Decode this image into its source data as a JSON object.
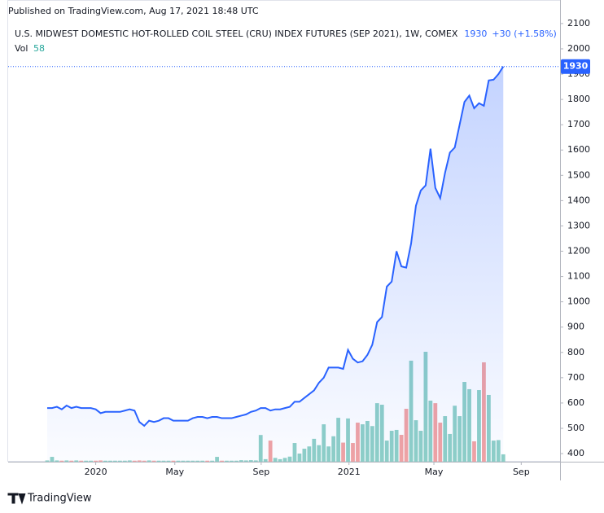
{
  "header": {
    "published": "Published on TradingView.com, Aug 17, 2021 18:48 UTC"
  },
  "footer": {
    "brand": "TradingView"
  },
  "chart_data": {
    "type": "line",
    "title": "U.S. MIDWEST DOMESTIC HOT-ROLLED COIL STEEL (CRU) INDEX FUTURES (SEP 2021), 1W, COMEX",
    "change": "+30 (+1.58%)",
    "x": [
      0,
      1,
      2,
      3,
      4,
      5,
      6,
      7,
      8,
      9,
      10,
      11,
      12,
      13,
      14,
      15,
      16,
      17,
      18,
      19,
      20,
      21,
      22,
      23,
      24,
      25,
      26,
      27,
      28,
      29,
      30,
      31,
      32,
      33,
      34,
      35,
      36,
      37,
      38,
      39,
      40,
      41,
      42,
      43,
      44,
      45,
      46,
      47,
      48,
      49,
      50,
      51,
      52,
      53,
      54,
      55,
      56,
      57,
      58,
      59,
      60,
      61,
      62,
      63,
      64,
      65,
      66,
      67,
      68,
      69,
      70,
      71,
      72,
      73,
      74,
      75,
      76,
      77,
      78,
      79,
      80,
      81,
      82,
      83,
      84,
      85,
      86,
      87,
      88,
      89,
      90,
      91,
      92,
      93,
      94
    ],
    "xlim": [
      -8.05,
      105.7
    ],
    "xticks": [
      {
        "value": 10,
        "label": "2020"
      },
      {
        "value": 26.3,
        "label": "May"
      },
      {
        "value": 44.1,
        "label": "Sep"
      },
      {
        "value": 62.2,
        "label": "2021"
      },
      {
        "value": 79.7,
        "label": "May"
      },
      {
        "value": 97.7,
        "label": "Sep"
      }
    ],
    "ylim": [
      368,
      2193
    ],
    "yticks": [
      400,
      500,
      600,
      700,
      800,
      900,
      1000,
      1100,
      1200,
      1300,
      1400,
      1500,
      1600,
      1700,
      1800,
      1900,
      2000,
      2100
    ],
    "price": {
      "color": "#2962ff",
      "values": [
        580,
        580,
        585,
        575,
        590,
        580,
        585,
        580,
        580,
        580,
        575,
        560,
        565,
        565,
        565,
        565,
        570,
        575,
        570,
        525,
        510,
        530,
        525,
        530,
        540,
        540,
        530,
        530,
        530,
        530,
        540,
        545,
        545,
        540,
        545,
        545,
        540,
        540,
        540,
        545,
        550,
        555,
        565,
        570,
        580,
        580,
        570,
        575,
        575,
        580,
        585,
        605,
        605,
        620,
        635,
        650,
        680,
        700,
        740,
        740,
        740,
        735,
        810,
        775,
        760,
        765,
        790,
        830,
        920,
        940,
        1060,
        1080,
        1200,
        1140,
        1135,
        1230,
        1380,
        1440,
        1460,
        1605,
        1450,
        1410,
        1510,
        1590,
        1610,
        1700,
        1790,
        1815,
        1765,
        1785,
        1775,
        1875,
        1878,
        1900,
        1930
      ]
    },
    "volume": {
      "label": "Vol",
      "up_color": "#8fd0c7",
      "down_color": "#f2a3a3",
      "values": [
        10,
        38,
        10,
        8,
        10,
        8,
        10,
        8,
        8,
        8,
        8,
        10,
        8,
        8,
        8,
        8,
        8,
        10,
        8,
        10,
        8,
        10,
        8,
        8,
        8,
        8,
        8,
        8,
        8,
        8,
        8,
        8,
        8,
        8,
        8,
        38,
        8,
        8,
        8,
        8,
        12,
        10,
        12,
        10,
        210,
        20,
        166,
        30,
        20,
        30,
        40,
        147,
        64,
        102,
        120,
        180,
        130,
        294,
        120,
        200,
        345,
        150,
        340,
        147,
        307,
        294,
        320,
        280,
        460,
        448,
        166,
        243,
        250,
        211,
        416,
        794,
        326,
        243,
        864,
        480,
        460,
        307,
        358,
        218,
        440,
        358,
        627,
        570,
        160,
        563,
        781,
        525,
        166,
        170,
        58
      ]
    }
  }
}
